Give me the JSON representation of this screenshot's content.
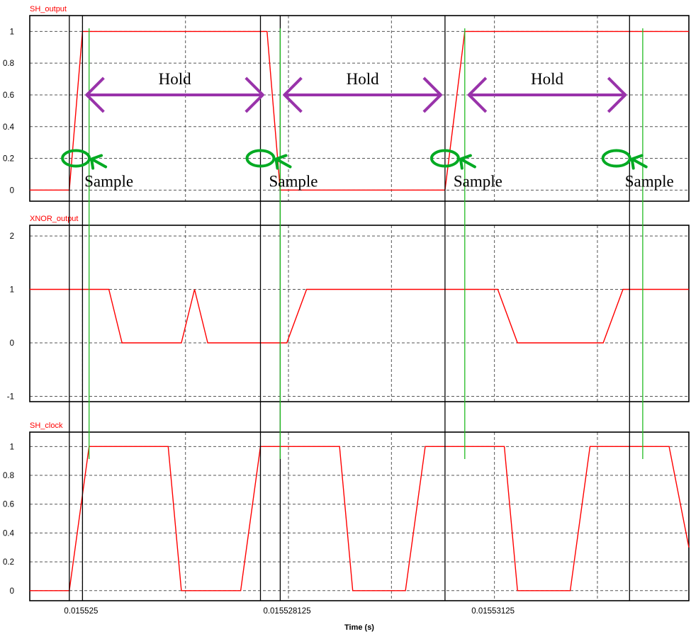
{
  "colors": {
    "signal": "#ff0000",
    "sample_marker": "#00aa22",
    "hold_arrow": "#9933aa",
    "guide_black": "#000000",
    "guide_green": "#22bb22",
    "grid": "#555555"
  },
  "x_axis": {
    "label": "Time (s)",
    "range": [
      0.0155242,
      0.0155342
    ],
    "ticks": [
      {
        "value": 0.015525,
        "label": "0.015525"
      },
      {
        "value": 0.015528125,
        "label": "0.015528125"
      },
      {
        "value": 0.01553125,
        "label": "0.01553125"
      }
    ],
    "gridlines": [
      0.015525,
      0.0155265625,
      0.015528125,
      0.0155296875,
      0.01553125,
      0.0155328125
    ]
  },
  "chart_data": [
    {
      "type": "line",
      "title": "SH_output",
      "ylim": [
        -0.07,
        1.1
      ],
      "yticks": [
        {
          "value": 0,
          "label": "0"
        },
        {
          "value": 0.2,
          "label": "0.2"
        },
        {
          "value": 0.4,
          "label": "0.4"
        },
        {
          "value": 0.6,
          "label": "0.6"
        },
        {
          "value": 0.8,
          "label": "0.8"
        },
        {
          "value": 1,
          "label": "1"
        }
      ],
      "x": [
        0.0155242,
        0.0155248,
        0.015525,
        0.0155278,
        0.015528,
        0.0155305,
        0.0155308,
        0.0155342
      ],
      "values": [
        0,
        0,
        1,
        1,
        0,
        0,
        1,
        1
      ]
    },
    {
      "type": "line",
      "title": "XNOR_output",
      "ylim": [
        -1.1,
        2.2
      ],
      "yticks": [
        {
          "value": -1,
          "label": "-1"
        },
        {
          "value": 0,
          "label": "0"
        },
        {
          "value": 1,
          "label": "1"
        },
        {
          "value": 2,
          "label": "2"
        }
      ],
      "x": [
        0.0155242,
        0.0155254,
        0.0155256,
        0.0155265,
        0.0155267,
        0.0155269,
        0.0155278,
        0.0155281,
        0.0155284,
        0.0155313,
        0.0155316,
        0.0155329,
        0.0155332,
        0.0155342
      ],
      "values": [
        1,
        1,
        0,
        0,
        1,
        0,
        0,
        0,
        1,
        1,
        0,
        0,
        1,
        1
      ]
    },
    {
      "type": "line",
      "title": "SH_clock",
      "ylim": [
        -0.07,
        1.1
      ],
      "yticks": [
        {
          "value": 0,
          "label": "0"
        },
        {
          "value": 0.2,
          "label": "0.2"
        },
        {
          "value": 0.4,
          "label": "0.4"
        },
        {
          "value": 0.6,
          "label": "0.6"
        },
        {
          "value": 0.8,
          "label": "0.8"
        },
        {
          "value": 1,
          "label": "1"
        }
      ],
      "x": [
        0.0155242,
        0.0155248,
        0.0155251,
        0.0155263,
        0.0155265,
        0.0155274,
        0.0155277,
        0.0155289,
        0.0155291,
        0.0155299,
        0.0155302,
        0.0155314,
        0.0155316,
        0.0155324,
        0.0155327,
        0.0155339,
        0.0155342
      ],
      "values": [
        0,
        0,
        1,
        1,
        0,
        0,
        1,
        1,
        0,
        0,
        1,
        1,
        0,
        0,
        1,
        1,
        0.3
      ]
    }
  ],
  "annotations": {
    "hold_label": "Hold",
    "sample_label": "Sample",
    "hold_spans": [
      [
        0.015525,
        0.0155278
      ],
      [
        0.015528,
        0.0155305
      ],
      [
        0.0155308,
        0.0155333
      ]
    ],
    "hold_level": 0.6,
    "sample_points": [
      0.0155249,
      0.0155277,
      0.0155305,
      0.0155331
    ],
    "sample_level": 0.2,
    "black_guides": [
      0.0155248,
      0.015525,
      0.0155277,
      0.015528,
      0.0155305,
      0.0155333
    ],
    "green_guides": [
      0.0155251,
      0.015528,
      0.0155308,
      0.0155335
    ]
  }
}
